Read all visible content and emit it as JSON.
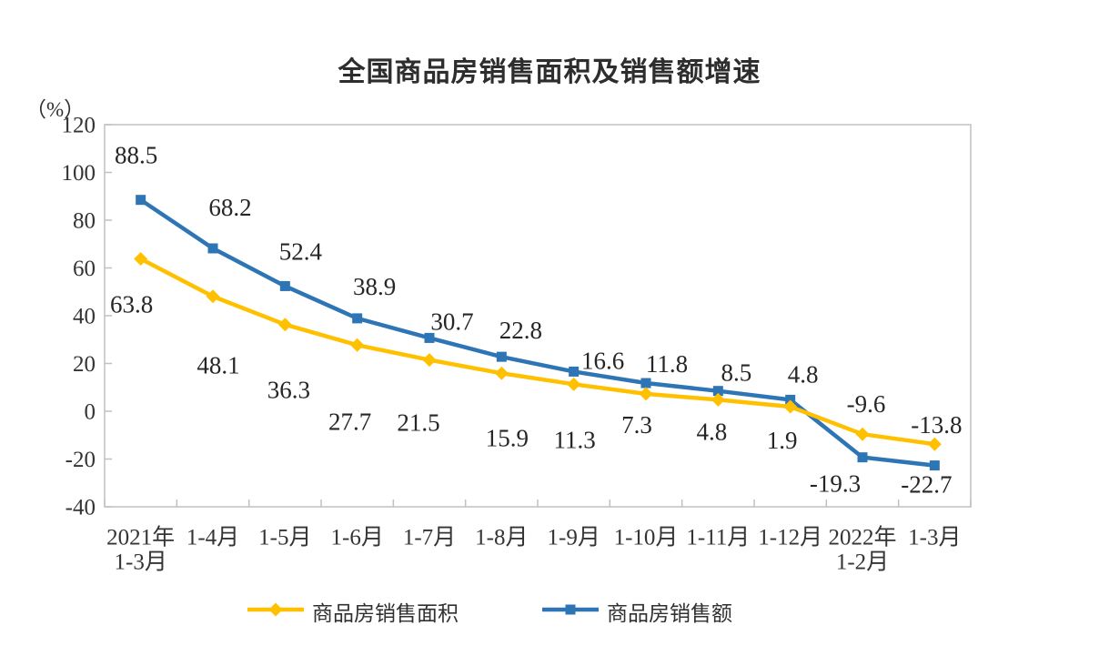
{
  "chart_data": {
    "type": "line",
    "title": "全国商品房销售面积及销售额增速",
    "y_unit_label": "（%）",
    "categories": [
      [
        "2021年",
        "1-3月"
      ],
      [
        "1-4月"
      ],
      [
        "1-5月"
      ],
      [
        "1-6月"
      ],
      [
        "1-7月"
      ],
      [
        "1-8月"
      ],
      [
        "1-9月"
      ],
      [
        "1-10月"
      ],
      [
        "1-11月"
      ],
      [
        "1-12月"
      ],
      [
        "2022年",
        "1-2月"
      ],
      [
        "1-3月"
      ]
    ],
    "series": [
      {
        "name": "商品房销售面积",
        "color": "#FFC000",
        "marker": "diamond",
        "values": [
          63.8,
          48.1,
          36.3,
          27.7,
          21.5,
          15.9,
          11.3,
          7.3,
          4.8,
          1.9,
          -9.6,
          -13.8
        ],
        "label_offsets": [
          [
            -10,
            50
          ],
          [
            6,
            76
          ],
          [
            4,
            72
          ],
          [
            -8,
            84
          ],
          [
            -12,
            69
          ],
          [
            6,
            71
          ],
          [
            1,
            61
          ],
          [
            -10,
            34
          ],
          [
            -7,
            35
          ],
          [
            -9,
            37
          ],
          [
            4,
            -33
          ],
          [
            2,
            -21
          ]
        ]
      },
      {
        "name": "商品房销售额",
        "color": "#2E75B6",
        "marker": "square",
        "values": [
          88.5,
          68.2,
          52.4,
          38.9,
          30.7,
          22.8,
          16.6,
          11.8,
          8.5,
          4.8,
          -19.3,
          -22.7
        ],
        "label_offsets": [
          [
            -5,
            -49
          ],
          [
            19,
            -45
          ],
          [
            17,
            -38
          ],
          [
            19,
            -35
          ],
          [
            25,
            -18
          ],
          [
            21,
            -29
          ],
          [
            32,
            -12
          ],
          [
            23,
            -21
          ],
          [
            20,
            -20
          ],
          [
            14,
            -28
          ],
          [
            -30,
            29
          ],
          [
            -9,
            21
          ]
        ]
      }
    ],
    "ylim": [
      -40,
      120
    ],
    "yticks": [
      120,
      100,
      80,
      60,
      40,
      20,
      0,
      -20,
      -40
    ],
    "grid": false,
    "legend_position": "bottom",
    "axis_color": "#C0C0C0",
    "text_color": "#343434"
  }
}
